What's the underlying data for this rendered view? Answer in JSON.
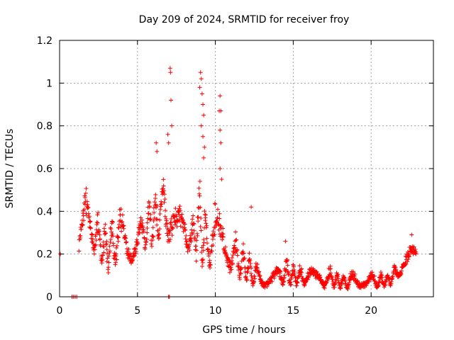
{
  "chart_data": {
    "type": "scatter",
    "title": "Day 209 of 2024, SRMTID for receiver froy",
    "xlabel": "GPS time / hours",
    "ylabel": "SRMTID / TECUs",
    "xlim": [
      0,
      24
    ],
    "ylim": [
      0,
      1.2
    ],
    "x_ticks": [
      "0",
      "5",
      "10",
      "15",
      "20"
    ],
    "y_ticks": [
      "0",
      "0.2",
      "0.4",
      "0.6",
      "0.8",
      "1",
      "1.2"
    ],
    "grid": true,
    "marker": "+",
    "color": "#ff0000",
    "envelope": {
      "hours": [
        0.0,
        1.0,
        1.3,
        1.7,
        2.0,
        2.5,
        3.0,
        3.5,
        4.0,
        4.5,
        5.0,
        5.5,
        6.0,
        6.5,
        7.0,
        7.5,
        8.0,
        8.5,
        9.0,
        9.5,
        10.0,
        10.5,
        11.0,
        11.5,
        12.0,
        12.5,
        13.0,
        13.5,
        14.0,
        14.5,
        15.0,
        15.5,
        16.0,
        16.5,
        17.0,
        17.5,
        18.0,
        18.5,
        19.0,
        19.5,
        20.0,
        20.5,
        21.0,
        21.5,
        22.0,
        22.5,
        22.9
      ],
      "low": [
        0.0,
        0.0,
        0.18,
        0.25,
        0.22,
        0.16,
        0.1,
        0.14,
        0.12,
        0.14,
        0.2,
        0.22,
        0.2,
        0.28,
        0.25,
        0.22,
        0.22,
        0.18,
        0.14,
        0.12,
        0.14,
        0.16,
        0.1,
        0.08,
        0.06,
        0.05,
        0.04,
        0.04,
        0.05,
        0.05,
        0.04,
        0.05,
        0.05,
        0.04,
        0.04,
        0.04,
        0.03,
        0.03,
        0.04,
        0.04,
        0.04,
        0.04,
        0.04,
        0.06,
        0.1,
        0.12,
        0.16
      ],
      "high": [
        0.0,
        0.0,
        0.35,
        0.55,
        0.48,
        0.42,
        0.38,
        0.42,
        0.46,
        0.38,
        0.36,
        0.44,
        0.56,
        0.58,
        0.62,
        0.48,
        0.4,
        0.38,
        0.62,
        0.4,
        0.46,
        0.44,
        0.32,
        0.3,
        0.24,
        0.18,
        0.14,
        0.14,
        0.16,
        0.2,
        0.16,
        0.16,
        0.15,
        0.14,
        0.16,
        0.14,
        0.12,
        0.12,
        0.14,
        0.13,
        0.12,
        0.12,
        0.12,
        0.16,
        0.2,
        0.24,
        0.28
      ]
    },
    "extra_points": [
      {
        "x": 0.05,
        "y": 0.2
      },
      {
        "x": 0.8,
        "y": 0.0
      },
      {
        "x": 0.9,
        "y": 0.0
      },
      {
        "x": 1.0,
        "y": 0.0
      },
      {
        "x": 1.1,
        "y": 0.0
      },
      {
        "x": 7.0,
        "y": 0.0
      },
      {
        "x": 7.05,
        "y": 0.0
      },
      {
        "x": 7.1,
        "y": 1.07
      },
      {
        "x": 7.12,
        "y": 1.05
      },
      {
        "x": 7.15,
        "y": 0.92
      },
      {
        "x": 7.2,
        "y": 0.8
      },
      {
        "x": 6.95,
        "y": 0.76
      },
      {
        "x": 7.0,
        "y": 0.72
      },
      {
        "x": 6.2,
        "y": 0.72
      },
      {
        "x": 6.25,
        "y": 0.68
      },
      {
        "x": 9.0,
        "y": 0.98
      },
      {
        "x": 9.05,
        "y": 1.05
      },
      {
        "x": 9.1,
        "y": 1.02
      },
      {
        "x": 9.15,
        "y": 0.95
      },
      {
        "x": 9.2,
        "y": 0.9
      },
      {
        "x": 9.25,
        "y": 0.85
      },
      {
        "x": 9.1,
        "y": 0.8
      },
      {
        "x": 9.2,
        "y": 0.75
      },
      {
        "x": 9.3,
        "y": 0.7
      },
      {
        "x": 9.25,
        "y": 0.65
      },
      {
        "x": 10.3,
        "y": 0.94
      },
      {
        "x": 10.25,
        "y": 0.87
      },
      {
        "x": 10.35,
        "y": 0.87
      },
      {
        "x": 10.3,
        "y": 0.78
      },
      {
        "x": 10.35,
        "y": 0.72
      },
      {
        "x": 10.3,
        "y": 0.6
      },
      {
        "x": 10.4,
        "y": 0.55
      },
      {
        "x": 12.3,
        "y": 0.42
      },
      {
        "x": 14.5,
        "y": 0.26
      },
      {
        "x": 22.6,
        "y": 0.29
      }
    ]
  }
}
